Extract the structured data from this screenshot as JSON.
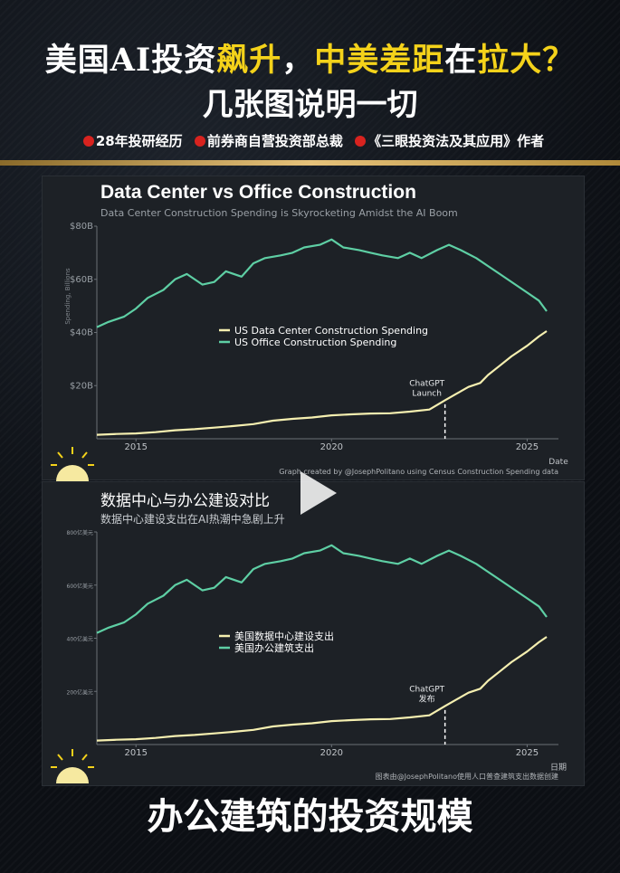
{
  "header": {
    "title_parts": [
      "美国AI投资",
      "飙升",
      "，",
      "中美差距",
      "在",
      "拉大",
      "？"
    ],
    "subtitle": "几张图说明一切",
    "tags": [
      "28年投研经历",
      "前券商自营投资部总裁",
      "《三眼投资法及其应用》作者"
    ]
  },
  "footer_caption": "办公建筑的投资规模",
  "colors": {
    "dc_line": "#f5efb0",
    "office_line": "#5ecfa4",
    "accent_yellow": "#f4d21a",
    "tag_dot": "#d8231f"
  },
  "icons": {
    "play": "play-icon",
    "sun": "sun-icon"
  },
  "chart_data": [
    {
      "type": "line",
      "title": "Data Center vs Office Construction",
      "subtitle": "Data Center Construction Spending is Skyrocketing Amidst the AI Boom",
      "xlabel": "Date",
      "ylabel": "Spending, Billions",
      "y_ticks": [
        "$20B",
        "$40B",
        "$60B",
        "$80B"
      ],
      "x_ticks": [
        "2015",
        "2020",
        "2025"
      ],
      "xlim": [
        2014,
        2025.8
      ],
      "ylim": [
        0,
        80
      ],
      "annotation": "ChatGPT Launch",
      "annotation_x": 2022.9,
      "credit": "Graph created by @JosephPolitano using Census Construction Spending data",
      "legend": [
        "US Data Center Construction Spending",
        "US Office Construction Spending"
      ],
      "series": [
        {
          "name": "US Data Center Construction Spending",
          "x": [
            2014.0,
            2014.5,
            2015.0,
            2015.5,
            2016.0,
            2016.5,
            2017.0,
            2017.5,
            2018.0,
            2018.5,
            2019.0,
            2019.5,
            2020.0,
            2020.5,
            2021.0,
            2021.5,
            2022.0,
            2022.5,
            2022.9,
            2023.2,
            2023.5,
            2023.8,
            2024.0,
            2024.3,
            2024.6,
            2025.0,
            2025.3,
            2025.5
          ],
          "values": [
            1.5,
            1.8,
            2.0,
            2.5,
            3.2,
            3.6,
            4.2,
            4.8,
            5.5,
            6.8,
            7.5,
            8.0,
            8.8,
            9.2,
            9.5,
            9.6,
            10.2,
            11.0,
            14.5,
            17.0,
            19.5,
            21.0,
            24.0,
            27.5,
            31.0,
            35.0,
            38.5,
            40.5
          ]
        },
        {
          "name": "US Office Construction Spending",
          "x": [
            2014.0,
            2014.3,
            2014.7,
            2015.0,
            2015.3,
            2015.7,
            2016.0,
            2016.3,
            2016.7,
            2017.0,
            2017.3,
            2017.7,
            2018.0,
            2018.3,
            2018.7,
            2019.0,
            2019.3,
            2019.7,
            2020.0,
            2020.3,
            2020.7,
            2021.0,
            2021.3,
            2021.7,
            2022.0,
            2022.3,
            2022.7,
            2023.0,
            2023.3,
            2023.7,
            2024.0,
            2024.3,
            2024.7,
            2025.0,
            2025.3,
            2025.5
          ],
          "values": [
            42,
            44,
            46,
            49,
            53,
            56,
            60,
            62,
            58,
            59,
            63,
            61,
            66,
            68,
            69,
            70,
            72,
            73,
            75,
            72,
            71,
            70,
            69,
            68,
            70,
            68,
            71,
            73,
            71,
            68,
            65,
            62,
            58,
            55,
            52,
            48
          ]
        }
      ]
    },
    {
      "type": "line",
      "title": "数据中心与办公建设对比",
      "subtitle": "数据中心建设支出在AI热潮中急剧上升",
      "xlabel": "日期",
      "y_ticks": [
        "200亿美元",
        "400亿美元",
        "600亿美元",
        "800亿美元"
      ],
      "x_ticks": [
        "2015",
        "2020",
        "2025"
      ],
      "xlim": [
        2014,
        2025.8
      ],
      "ylim": [
        0,
        80
      ],
      "annotation": "ChatGPT 发布",
      "annotation_x": 2022.9,
      "credit": "图表由@JosephPolitano使用人口普查建筑支出数据创建",
      "legend": [
        "美国数据中心建设支出",
        "美国办公建筑支出"
      ],
      "series": [
        {
          "name": "美国数据中心建设支出",
          "x": [
            2014.0,
            2014.5,
            2015.0,
            2015.5,
            2016.0,
            2016.5,
            2017.0,
            2017.5,
            2018.0,
            2018.5,
            2019.0,
            2019.5,
            2020.0,
            2020.5,
            2021.0,
            2021.5,
            2022.0,
            2022.5,
            2022.9,
            2023.2,
            2023.5,
            2023.8,
            2024.0,
            2024.3,
            2024.6,
            2025.0,
            2025.3,
            2025.5
          ],
          "values": [
            1.5,
            1.8,
            2.0,
            2.5,
            3.2,
            3.6,
            4.2,
            4.8,
            5.5,
            6.8,
            7.5,
            8.0,
            8.8,
            9.2,
            9.5,
            9.6,
            10.2,
            11.0,
            14.5,
            17.0,
            19.5,
            21.0,
            24.0,
            27.5,
            31.0,
            35.0,
            38.5,
            40.5
          ]
        },
        {
          "name": "美国办公建筑支出",
          "x": [
            2014.0,
            2014.3,
            2014.7,
            2015.0,
            2015.3,
            2015.7,
            2016.0,
            2016.3,
            2016.7,
            2017.0,
            2017.3,
            2017.7,
            2018.0,
            2018.3,
            2018.7,
            2019.0,
            2019.3,
            2019.7,
            2020.0,
            2020.3,
            2020.7,
            2021.0,
            2021.3,
            2021.7,
            2022.0,
            2022.3,
            2022.7,
            2023.0,
            2023.3,
            2023.7,
            2024.0,
            2024.3,
            2024.7,
            2025.0,
            2025.3,
            2025.5
          ],
          "values": [
            42,
            44,
            46,
            49,
            53,
            56,
            60,
            62,
            58,
            59,
            63,
            61,
            66,
            68,
            69,
            70,
            72,
            73,
            75,
            72,
            71,
            70,
            69,
            68,
            70,
            68,
            71,
            73,
            71,
            68,
            65,
            62,
            58,
            55,
            52,
            48
          ]
        }
      ]
    }
  ]
}
